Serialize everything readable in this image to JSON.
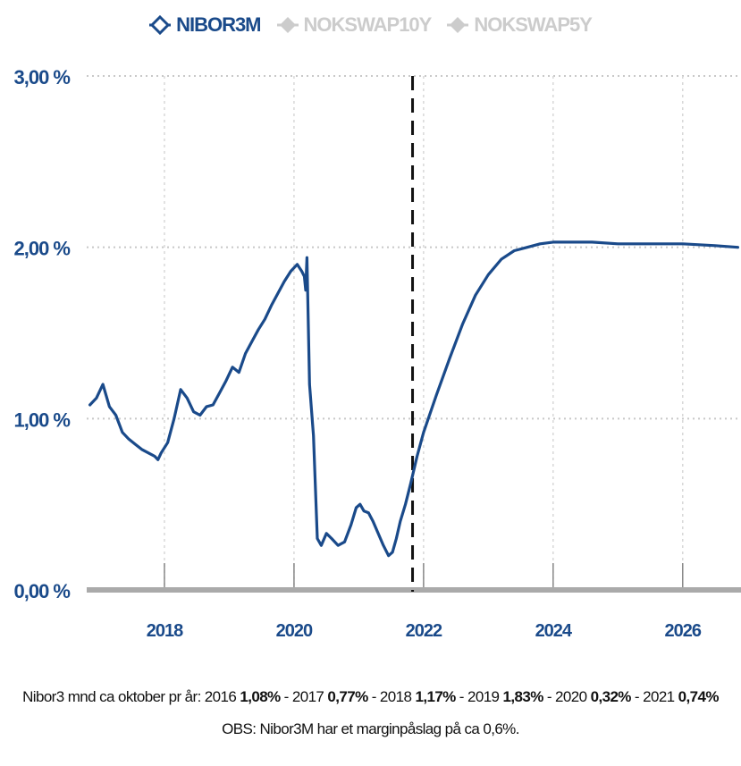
{
  "legend": [
    {
      "name": "NIBOR3M",
      "active": true,
      "icon": "diamond-outline-icon",
      "color": "#1a4a8a"
    },
    {
      "name": "NOKSWAP10Y",
      "active": false,
      "icon": "diamond-filled-icon",
      "color": "#cccccc"
    },
    {
      "name": "NOKSWAP5Y",
      "active": false,
      "icon": "diamond-filled-icon",
      "color": "#cccccc"
    }
  ],
  "chart_data": {
    "type": "line",
    "x_unit": "year",
    "xlim": [
      2016.8,
      2026.9
    ],
    "ylim": [
      0,
      3
    ],
    "yticks": [
      0,
      1,
      2,
      3
    ],
    "ytick_labels": [
      "0,00 %",
      "1,00 %",
      "2,00 %",
      "3,00 %"
    ],
    "xticks": [
      2018,
      2020,
      2022,
      2024,
      2026
    ],
    "xtick_labels": [
      "2018",
      "2020",
      "2022",
      "2024",
      "2026"
    ],
    "grid": true,
    "vertical_marker_x": 2021.83,
    "line_color": "#1a4a8a",
    "series": [
      {
        "name": "NIBOR3M",
        "x": [
          2016.85,
          2016.95,
          2017.05,
          2017.15,
          2017.25,
          2017.35,
          2017.45,
          2017.55,
          2017.65,
          2017.75,
          2017.85,
          2017.9,
          2017.95,
          2018.05,
          2018.15,
          2018.25,
          2018.35,
          2018.45,
          2018.55,
          2018.65,
          2018.75,
          2018.85,
          2018.95,
          2019.05,
          2019.15,
          2019.25,
          2019.35,
          2019.45,
          2019.55,
          2019.65,
          2019.75,
          2019.85,
          2019.95,
          2020.05,
          2020.12,
          2020.16,
          2020.18,
          2020.2,
          2020.24,
          2020.3,
          2020.36,
          2020.42,
          2020.5,
          2020.58,
          2020.68,
          2020.78,
          2020.88,
          2020.96,
          2021.02,
          2021.08,
          2021.15,
          2021.22,
          2021.3,
          2021.38,
          2021.46,
          2021.52,
          2021.58,
          2021.64,
          2021.72,
          2021.8,
          2021.9,
          2022.0,
          2022.2,
          2022.4,
          2022.6,
          2022.8,
          2023.0,
          2023.2,
          2023.4,
          2023.6,
          2023.8,
          2024.0,
          2024.3,
          2024.6,
          2025.0,
          2025.5,
          2026.0,
          2026.5,
          2026.85
        ],
        "y": [
          1.08,
          1.12,
          1.2,
          1.07,
          1.02,
          0.92,
          0.88,
          0.85,
          0.82,
          0.8,
          0.78,
          0.76,
          0.8,
          0.86,
          1.0,
          1.17,
          1.12,
          1.04,
          1.02,
          1.07,
          1.08,
          1.15,
          1.22,
          1.3,
          1.27,
          1.38,
          1.45,
          1.52,
          1.58,
          1.66,
          1.73,
          1.8,
          1.86,
          1.9,
          1.86,
          1.83,
          1.75,
          1.94,
          1.2,
          0.9,
          0.3,
          0.26,
          0.33,
          0.3,
          0.26,
          0.28,
          0.38,
          0.48,
          0.5,
          0.46,
          0.45,
          0.4,
          0.33,
          0.26,
          0.2,
          0.22,
          0.3,
          0.4,
          0.5,
          0.62,
          0.78,
          0.92,
          1.14,
          1.35,
          1.55,
          1.72,
          1.84,
          1.93,
          1.98,
          2.0,
          2.02,
          2.03,
          2.03,
          2.03,
          2.02,
          2.02,
          2.02,
          2.01,
          2.0
        ]
      }
    ]
  },
  "caption": {
    "line1_parts": [
      {
        "text": "Nibor3 mnd ca oktober pr år: 2016 ",
        "bold": false
      },
      {
        "text": "1,08%",
        "bold": true
      },
      {
        "text": " - 2017 ",
        "bold": false
      },
      {
        "text": "0,77%",
        "bold": true
      },
      {
        "text": " - 2018 ",
        "bold": false
      },
      {
        "text": "1,17%",
        "bold": true
      },
      {
        "text": " - 2019 ",
        "bold": false
      },
      {
        "text": "1,83%",
        "bold": true
      },
      {
        "text": " - 2020 ",
        "bold": false
      },
      {
        "text": "0,32%",
        "bold": true
      },
      {
        "text": " - 2021 ",
        "bold": false
      },
      {
        "text": "0,74%",
        "bold": true
      }
    ],
    "line2": "OBS: Nibor3M har et marginpåslag på ca 0,6%."
  }
}
